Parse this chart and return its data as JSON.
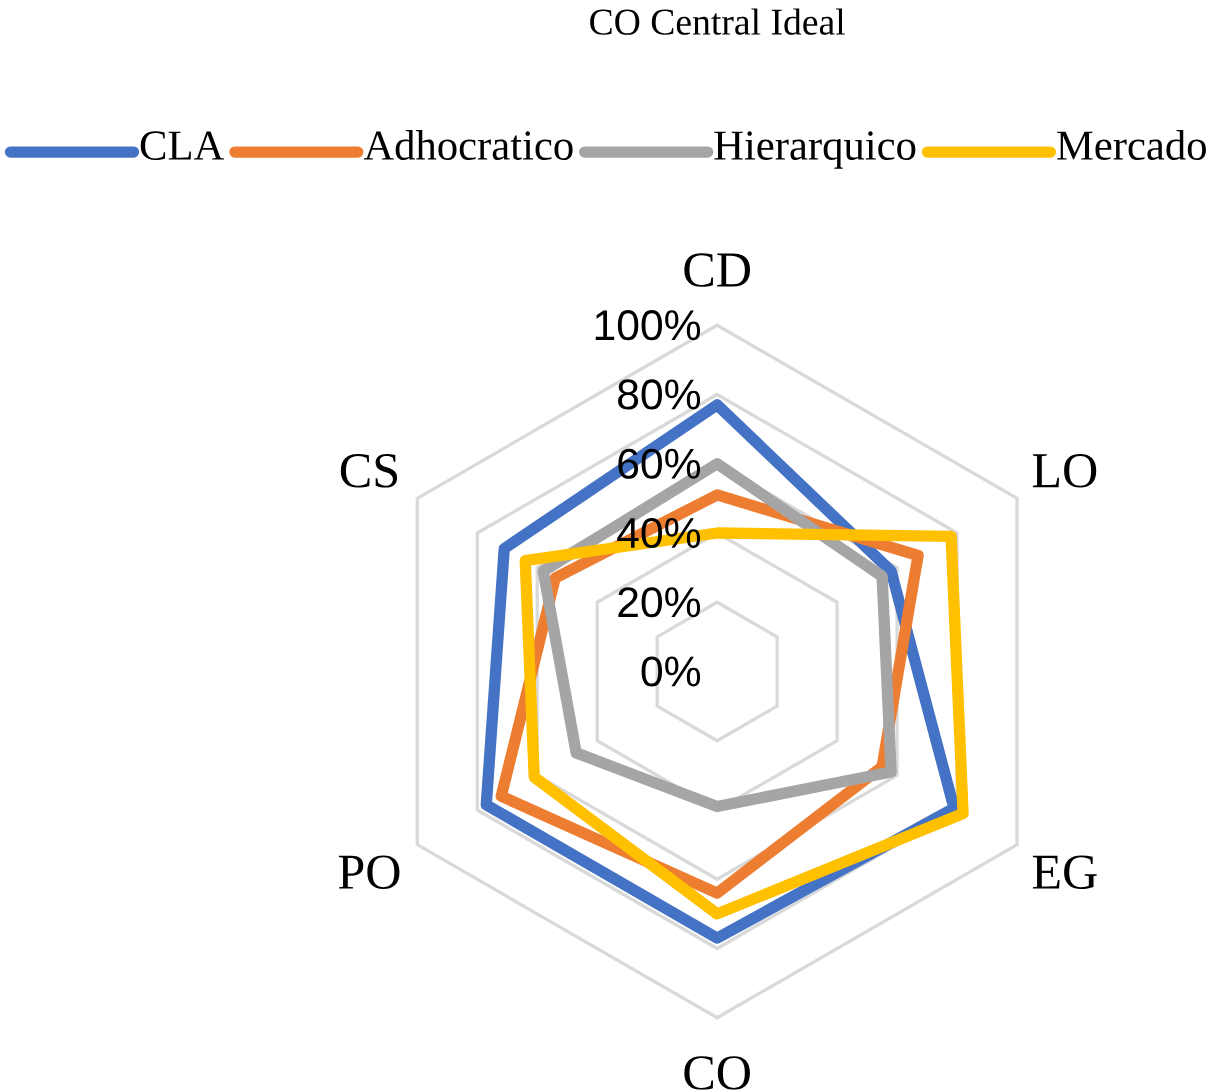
{
  "chart_data": {
    "type": "radar",
    "title": "CO Central Ideal",
    "categories": [
      "CD",
      "LO",
      "EG",
      "CO",
      "PO",
      "CS"
    ],
    "series": [
      {
        "name": "CLA",
        "color": "#4472c4",
        "values": [
          77,
          58,
          79,
          77,
          77,
          71
        ]
      },
      {
        "name": "Adhocratico",
        "color": "#ed7d31",
        "values": [
          51,
          67,
          55,
          64,
          72,
          54
        ]
      },
      {
        "name": "Hierarquico",
        "color": "#a5a5a5",
        "values": [
          60,
          55,
          58,
          39,
          47,
          58
        ]
      },
      {
        "name": "Mercado",
        "color": "#ffc000",
        "values": [
          40,
          78,
          82,
          70,
          61,
          64
        ]
      }
    ],
    "ylim": [
      0,
      100
    ],
    "yticks": [
      {
        "value": 0,
        "label": "0%"
      },
      {
        "value": 20,
        "label": "20%"
      },
      {
        "value": 40,
        "label": "40%"
      },
      {
        "value": 60,
        "label": "60%"
      },
      {
        "value": 80,
        "label": "80%"
      },
      {
        "value": 100,
        "label": "100%"
      }
    ],
    "grid": true,
    "legend": "top",
    "line_style": "solid"
  }
}
